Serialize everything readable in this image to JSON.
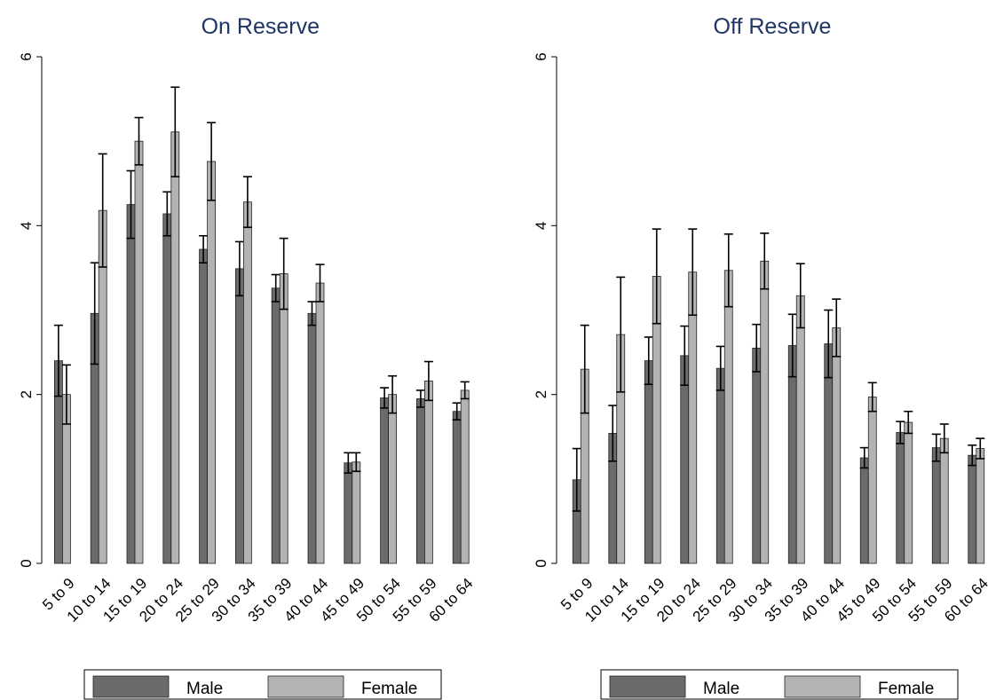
{
  "chart_data": [
    {
      "type": "bar",
      "title": "On Reserve",
      "categories": [
        "5 to 9",
        "10 to 14",
        "15 to 19",
        "20 to 24",
        "25 to 29",
        "30 to 34",
        "35 to 39",
        "40 to 44",
        "45 to 49",
        "50 to 54",
        "55 to 59",
        "60 to 64"
      ],
      "series": [
        {
          "name": "Male",
          "color": "#6b6b6b",
          "values": [
            2.4,
            2.96,
            4.25,
            4.14,
            3.72,
            3.49,
            3.26,
            2.96,
            1.19,
            1.96,
            1.95,
            1.8
          ],
          "errors": [
            0.42,
            0.6,
            0.4,
            0.26,
            0.16,
            0.32,
            0.16,
            0.14,
            0.12,
            0.12,
            0.1,
            0.1
          ]
        },
        {
          "name": "Female",
          "color": "#b3b3b3",
          "values": [
            2.0,
            4.18,
            5.0,
            5.11,
            4.76,
            4.28,
            3.43,
            3.32,
            1.2,
            2.0,
            2.16,
            2.05
          ],
          "errors": [
            0.35,
            0.67,
            0.28,
            0.53,
            0.46,
            0.3,
            0.42,
            0.22,
            0.11,
            0.22,
            0.23,
            0.1
          ]
        }
      ],
      "ylim": [
        0,
        6
      ],
      "yticks": [
        0,
        2,
        4,
        6
      ],
      "grid": false,
      "legend": "bottom"
    },
    {
      "type": "bar",
      "title": "Off Reserve",
      "categories": [
        "5 to 9",
        "10 to 14",
        "15 to 19",
        "20 to 24",
        "25 to 29",
        "30 to 34",
        "35 to 39",
        "40 to 44",
        "45 to 49",
        "50 to 54",
        "55 to 59",
        "60 to 64"
      ],
      "series": [
        {
          "name": "Male",
          "color": "#6b6b6b",
          "values": [
            0.99,
            1.54,
            2.4,
            2.46,
            2.31,
            2.55,
            2.58,
            2.6,
            1.25,
            1.55,
            1.37,
            1.28
          ],
          "errors": [
            0.37,
            0.33,
            0.28,
            0.35,
            0.26,
            0.28,
            0.37,
            0.4,
            0.12,
            0.13,
            0.16,
            0.12
          ]
        },
        {
          "name": "Female",
          "color": "#b3b3b3",
          "values": [
            2.3,
            2.71,
            3.4,
            3.45,
            3.47,
            3.58,
            3.17,
            2.79,
            1.97,
            1.67,
            1.48,
            1.36
          ],
          "errors": [
            0.52,
            0.68,
            0.56,
            0.51,
            0.43,
            0.33,
            0.38,
            0.34,
            0.17,
            0.13,
            0.17,
            0.12
          ]
        }
      ],
      "ylim": [
        0,
        6
      ],
      "yticks": [
        0,
        2,
        4,
        6
      ],
      "grid": false,
      "legend": "bottom"
    }
  ]
}
